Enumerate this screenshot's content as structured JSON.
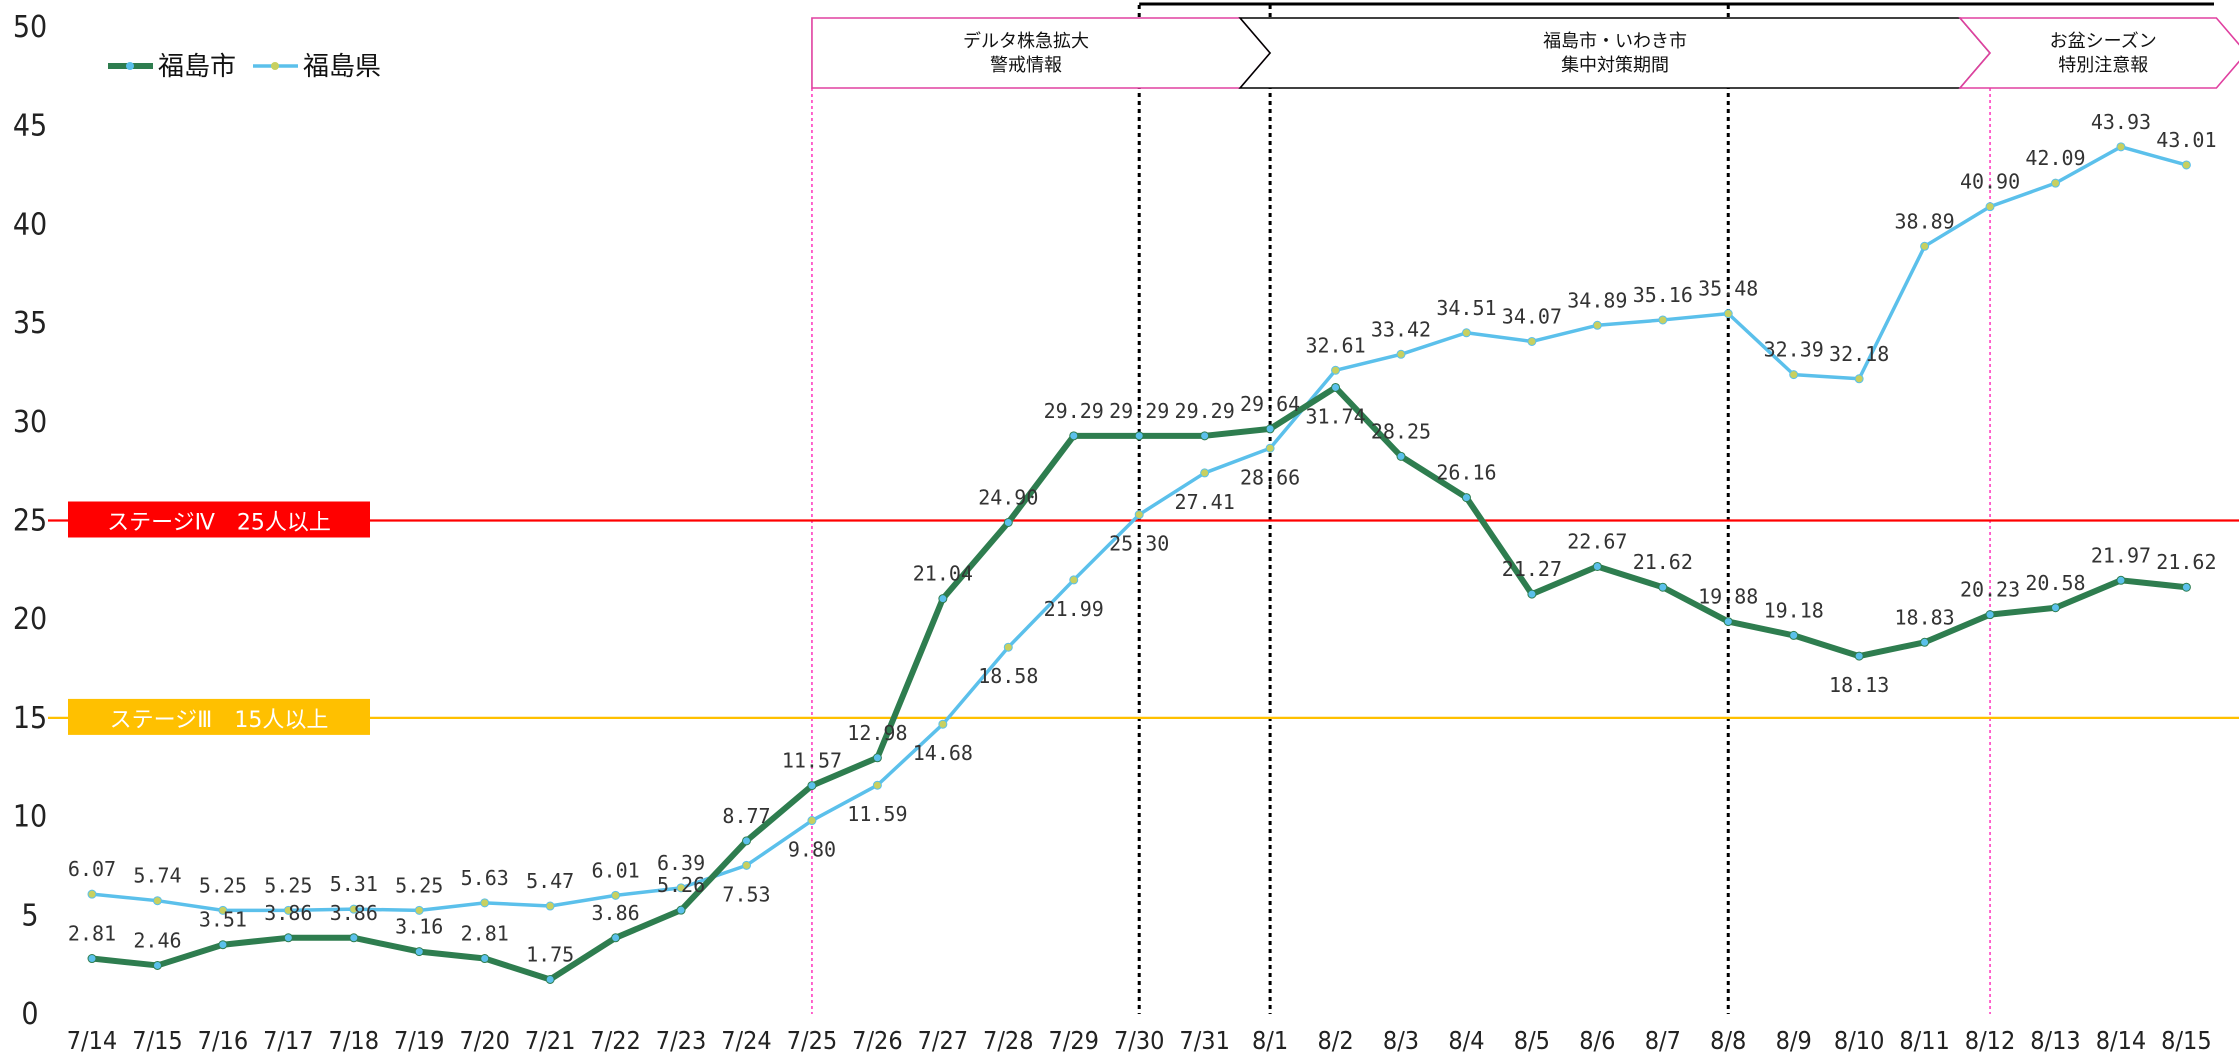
{
  "chart_data": {
    "type": "line",
    "x": [
      "7/14",
      "7/15",
      "7/16",
      "7/17",
      "7/18",
      "7/19",
      "7/20",
      "7/21",
      "7/22",
      "7/23",
      "7/24",
      "7/25",
      "7/26",
      "7/27",
      "7/28",
      "7/29",
      "7/30",
      "7/31",
      "8/1",
      "8/2",
      "8/3",
      "8/4",
      "8/5",
      "8/6",
      "8/7",
      "8/8",
      "8/9",
      "8/10",
      "8/11",
      "8/12",
      "8/13",
      "8/14",
      "8/15"
    ],
    "ylim": [
      0,
      50
    ],
    "yticks": [
      0,
      5,
      10,
      15,
      20,
      25,
      30,
      35,
      40,
      45,
      50
    ],
    "grid": false,
    "legend": "top-left",
    "series": [
      {
        "name": "福島市",
        "color": "#2e7d4f",
        "labels": [
          "2.81",
          "2.46",
          "3.51",
          "3.86",
          "3.86",
          "3.16",
          "2.81",
          "1.75",
          "3.86",
          "5.26",
          "8.77",
          "11.57",
          "12.98",
          "21.04",
          "24.90",
          "29.29",
          "29.29",
          "29.29",
          "29.64",
          "31.74",
          "28.25",
          "26.16",
          "21.27",
          "22.67",
          "21.62",
          "19.88",
          "19.18",
          "18.13",
          "18.83",
          "20.23",
          "20.58",
          "21.97",
          "21.62"
        ],
        "values": [
          2.81,
          2.46,
          3.51,
          3.86,
          3.86,
          3.16,
          2.81,
          1.75,
          3.86,
          5.26,
          8.77,
          11.57,
          12.98,
          21.04,
          24.9,
          29.29,
          29.29,
          29.29,
          29.64,
          31.74,
          28.25,
          26.16,
          21.27,
          22.67,
          21.62,
          19.88,
          19.18,
          18.13,
          18.83,
          20.23,
          20.58,
          21.97,
          21.62
        ]
      },
      {
        "name": "福島県",
        "color": "#5bc0eb",
        "labels": [
          "6.07",
          "5.74",
          "5.25",
          "5.25",
          "5.31",
          "5.25",
          "5.63",
          "5.47",
          "6.01",
          "6.39",
          "7.53",
          "9.80",
          "11.59",
          "14.68",
          "18.58",
          "21.99",
          "25.30",
          "27.41",
          "28.66",
          "32.61",
          "33.42",
          "34.51",
          "34.07",
          "34.89",
          "35.16",
          "35.48",
          "32.39",
          "32.18",
          "38.89",
          "40.90",
          "42.09",
          "43.93",
          "43.01"
        ],
        "values": [
          6.07,
          5.74,
          5.25,
          5.25,
          5.31,
          5.25,
          5.63,
          5.47,
          6.01,
          6.39,
          7.53,
          9.8,
          11.59,
          14.68,
          18.58,
          21.99,
          25.3,
          27.41,
          28.66,
          32.61,
          33.42,
          34.51,
          34.07,
          34.89,
          35.16,
          35.48,
          32.39,
          32.18,
          38.89,
          40.9,
          42.09,
          43.93,
          43.01
        ]
      }
    ],
    "thresholds": [
      {
        "label": "ステージⅣ　25人以上",
        "value": 25,
        "color": "#ff0000"
      },
      {
        "label": "ステージⅢ　15人以上",
        "value": 15,
        "color": "#ffc000"
      }
    ],
    "vertical_markers": [
      {
        "at": "7/25",
        "style": "pink-dotted"
      },
      {
        "at": "7/30",
        "style": "black-dotted"
      },
      {
        "at": "8/1",
        "style": "black-dotted"
      },
      {
        "at": "8/8",
        "style": "black-dotted"
      },
      {
        "at": "8/12",
        "style": "pink-dotted"
      }
    ],
    "periods": [
      {
        "lines": [
          "デルタ株急拡大",
          "警戒情報"
        ],
        "from": "7/25",
        "to": "8/1",
        "border": "#e040a0"
      },
      {
        "lines": [
          "福島市・いわき市",
          "集中対策期間"
        ],
        "from": "8/1",
        "to": "8/12",
        "border": "#000000"
      },
      {
        "lines": [
          "お盆シーズン",
          "特別注意報"
        ],
        "from": "8/12",
        "to": "8/15",
        "border": "#e040a0"
      }
    ]
  }
}
